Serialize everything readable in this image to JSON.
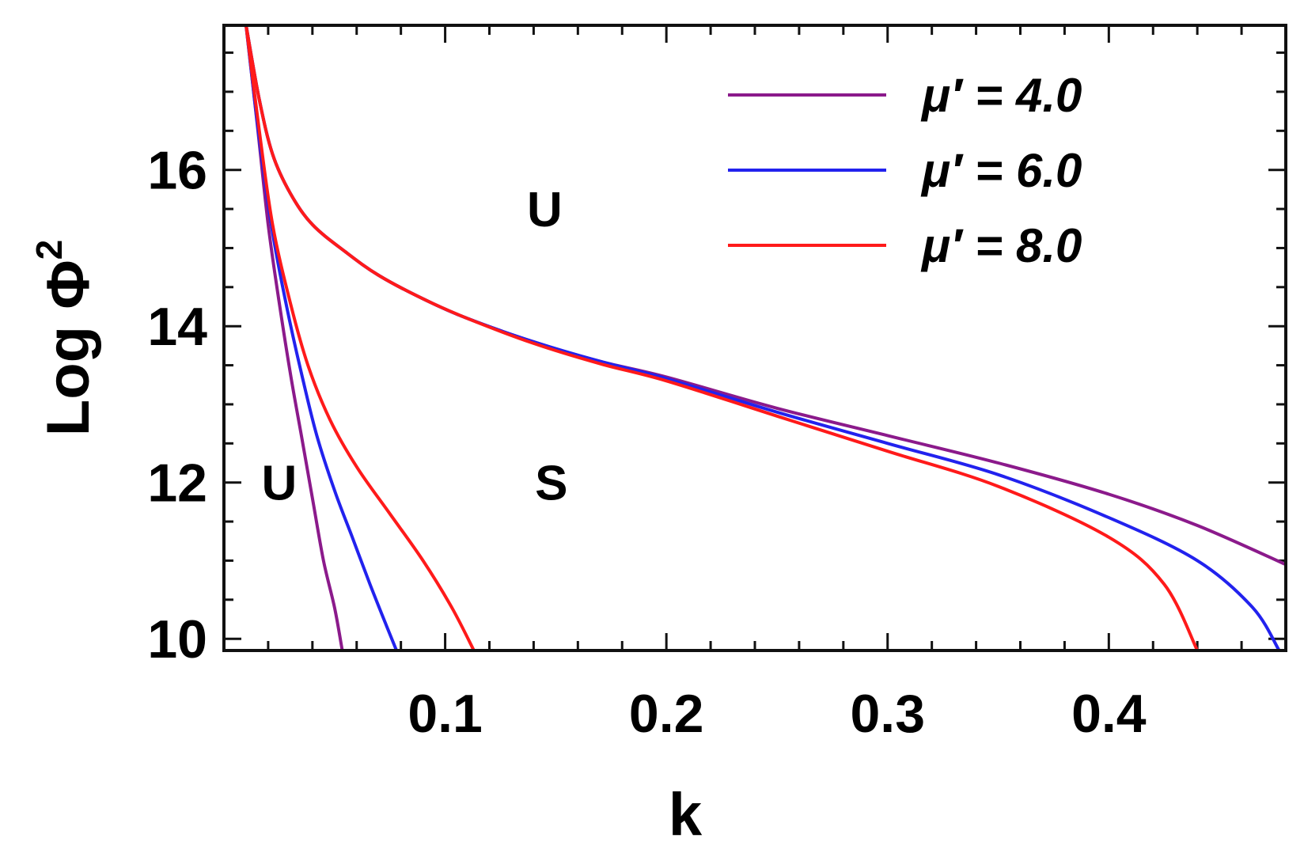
{
  "chart_data": {
    "type": "line",
    "xlabel": "k",
    "ylabel": "Log Φ",
    "ylabel_sup": "2",
    "xlim": [
      0.0,
      0.48
    ],
    "ylim": [
      9.85,
      17.85
    ],
    "x_ticks": [
      {
        "value": 0.1,
        "label": "0.1"
      },
      {
        "value": 0.2,
        "label": "0.2"
      },
      {
        "value": 0.3,
        "label": "0.3"
      },
      {
        "value": 0.4,
        "label": "0.4"
      }
    ],
    "y_ticks": [
      {
        "value": 10,
        "label": "10"
      },
      {
        "value": 12,
        "label": "12"
      },
      {
        "value": 14,
        "label": "14"
      },
      {
        "value": 16,
        "label": "16"
      }
    ],
    "legend_position": "top-right",
    "regions": [
      {
        "label": "U",
        "x": 0.145,
        "y": 15.5
      },
      {
        "label": "U",
        "x": 0.025,
        "y": 12.0
      },
      {
        "label": "S",
        "x": 0.148,
        "y": 12.0
      }
    ],
    "series": [
      {
        "name": "μ′ = 4.0",
        "color": "#8b1a8b",
        "upper": [
          [
            0.01,
            17.85
          ],
          [
            0.016,
            16.9
          ],
          [
            0.022,
            16.2
          ],
          [
            0.03,
            15.7
          ],
          [
            0.04,
            15.3
          ],
          [
            0.055,
            14.95
          ],
          [
            0.07,
            14.65
          ],
          [
            0.09,
            14.35
          ],
          [
            0.11,
            14.1
          ],
          [
            0.14,
            13.8
          ],
          [
            0.17,
            13.55
          ],
          [
            0.2,
            13.35
          ],
          [
            0.25,
            12.95
          ],
          [
            0.3,
            12.6
          ],
          [
            0.35,
            12.25
          ],
          [
            0.4,
            11.85
          ],
          [
            0.44,
            11.45
          ],
          [
            0.48,
            10.95
          ]
        ],
        "lower": [
          [
            0.01,
            17.85
          ],
          [
            0.015,
            16.6
          ],
          [
            0.02,
            15.3
          ],
          [
            0.025,
            14.3
          ],
          [
            0.03,
            13.4
          ],
          [
            0.035,
            12.6
          ],
          [
            0.04,
            11.8
          ],
          [
            0.045,
            11.0
          ],
          [
            0.05,
            10.4
          ],
          [
            0.0535,
            9.85
          ]
        ]
      },
      {
        "name": "μ′ = 6.0",
        "color": "#2222ee",
        "upper": [
          [
            0.01,
            17.85
          ],
          [
            0.016,
            16.9
          ],
          [
            0.022,
            16.2
          ],
          [
            0.03,
            15.7
          ],
          [
            0.04,
            15.3
          ],
          [
            0.055,
            14.95
          ],
          [
            0.07,
            14.65
          ],
          [
            0.09,
            14.35
          ],
          [
            0.11,
            14.1
          ],
          [
            0.14,
            13.8
          ],
          [
            0.17,
            13.55
          ],
          [
            0.2,
            13.33
          ],
          [
            0.25,
            12.9
          ],
          [
            0.3,
            12.5
          ],
          [
            0.35,
            12.1
          ],
          [
            0.4,
            11.55
          ],
          [
            0.44,
            11.0
          ],
          [
            0.465,
            10.4
          ],
          [
            0.477,
            9.85
          ]
        ],
        "lower": [
          [
            0.01,
            17.85
          ],
          [
            0.016,
            16.4
          ],
          [
            0.022,
            15.2
          ],
          [
            0.028,
            14.3
          ],
          [
            0.035,
            13.4
          ],
          [
            0.042,
            12.6
          ],
          [
            0.05,
            11.9
          ],
          [
            0.058,
            11.3
          ],
          [
            0.066,
            10.7
          ],
          [
            0.073,
            10.2
          ],
          [
            0.078,
            9.85
          ]
        ]
      },
      {
        "name": "μ′ = 8.0",
        "color": "#ff1a1a",
        "upper": [
          [
            0.01,
            17.85
          ],
          [
            0.016,
            16.9
          ],
          [
            0.022,
            16.2
          ],
          [
            0.03,
            15.7
          ],
          [
            0.04,
            15.3
          ],
          [
            0.055,
            14.95
          ],
          [
            0.07,
            14.65
          ],
          [
            0.09,
            14.35
          ],
          [
            0.11,
            14.1
          ],
          [
            0.14,
            13.78
          ],
          [
            0.17,
            13.52
          ],
          [
            0.2,
            13.3
          ],
          [
            0.25,
            12.85
          ],
          [
            0.3,
            12.4
          ],
          [
            0.35,
            11.95
          ],
          [
            0.4,
            11.3
          ],
          [
            0.425,
            10.7
          ],
          [
            0.44,
            9.85
          ]
        ],
        "lower": [
          [
            0.01,
            17.85
          ],
          [
            0.016,
            16.5
          ],
          [
            0.022,
            15.3
          ],
          [
            0.03,
            14.3
          ],
          [
            0.038,
            13.5
          ],
          [
            0.048,
            12.8
          ],
          [
            0.06,
            12.2
          ],
          [
            0.075,
            11.6
          ],
          [
            0.09,
            11.0
          ],
          [
            0.103,
            10.4
          ],
          [
            0.113,
            9.85
          ]
        ]
      }
    ]
  }
}
